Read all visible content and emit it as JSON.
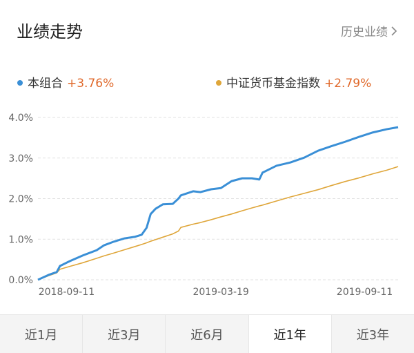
{
  "header": {
    "title": "业绩走势",
    "link": "历史业绩"
  },
  "chart_data": {
    "type": "line",
    "x": [
      "2018-08-07",
      "2018-08-20",
      "2018-08-30",
      "2018-09-03",
      "2018-09-15",
      "2018-10-01",
      "2018-10-18",
      "2018-10-27",
      "2018-11-08",
      "2018-11-21",
      "2018-12-04",
      "2018-12-12",
      "2018-12-18",
      "2018-12-23",
      "2018-12-29",
      "2019-01-07",
      "2019-01-19",
      "2019-01-26",
      "2019-01-29",
      "2019-02-13",
      "2019-02-22",
      "2019-03-07",
      "2019-03-19",
      "2019-04-01",
      "2019-04-14",
      "2019-04-26",
      "2019-05-05",
      "2019-05-09",
      "2019-05-26",
      "2019-06-12",
      "2019-06-29",
      "2019-07-16",
      "2019-08-01",
      "2019-08-18",
      "2019-09-04",
      "2019-09-21",
      "2019-10-08",
      "2019-10-22"
    ],
    "series": [
      {
        "name": "本组合",
        "color": "#3a8fd6",
        "change": "+3.76%",
        "values": [
          0,
          0.12,
          0.19,
          0.34,
          0.46,
          0.6,
          0.73,
          0.85,
          0.94,
          1.02,
          1.06,
          1.11,
          1.28,
          1.62,
          1.75,
          1.86,
          1.87,
          2.0,
          2.08,
          2.18,
          2.16,
          2.23,
          2.26,
          2.43,
          2.5,
          2.5,
          2.47,
          2.64,
          2.81,
          2.89,
          3.01,
          3.18,
          3.29,
          3.4,
          3.52,
          3.63,
          3.71,
          3.76
        ]
      },
      {
        "name": "中证货币基金指数",
        "color": "#dfa63a",
        "change": "+2.79%",
        "values": [
          0,
          0.1,
          0.17,
          0.26,
          0.33,
          0.42,
          0.53,
          0.59,
          0.66,
          0.74,
          0.82,
          0.87,
          0.91,
          0.95,
          0.99,
          1.05,
          1.13,
          1.2,
          1.29,
          1.37,
          1.41,
          1.48,
          1.55,
          1.62,
          1.7,
          1.77,
          1.82,
          1.84,
          1.94,
          2.04,
          2.13,
          2.22,
          2.32,
          2.42,
          2.51,
          2.61,
          2.7,
          2.79
        ]
      }
    ],
    "change_color": "#e0692b",
    "xlim": [
      "2018-08-07",
      "2019-10-22"
    ],
    "xticks": [
      "2018-09-11",
      "2019-03-19",
      "2019-09-11"
    ],
    "ylim": [
      0,
      4
    ],
    "yticks": [
      {
        "value": 0,
        "label": "0.0%"
      },
      {
        "value": 1,
        "label": "1.0%"
      },
      {
        "value": 2,
        "label": "2.0%"
      },
      {
        "value": 3,
        "label": "3.0%"
      },
      {
        "value": 4,
        "label": "4.0%"
      }
    ],
    "grid": true
  },
  "tabs": {
    "labels": [
      "近1月",
      "近3月",
      "近6月",
      "近1年",
      "近3年"
    ],
    "selected": 3
  }
}
